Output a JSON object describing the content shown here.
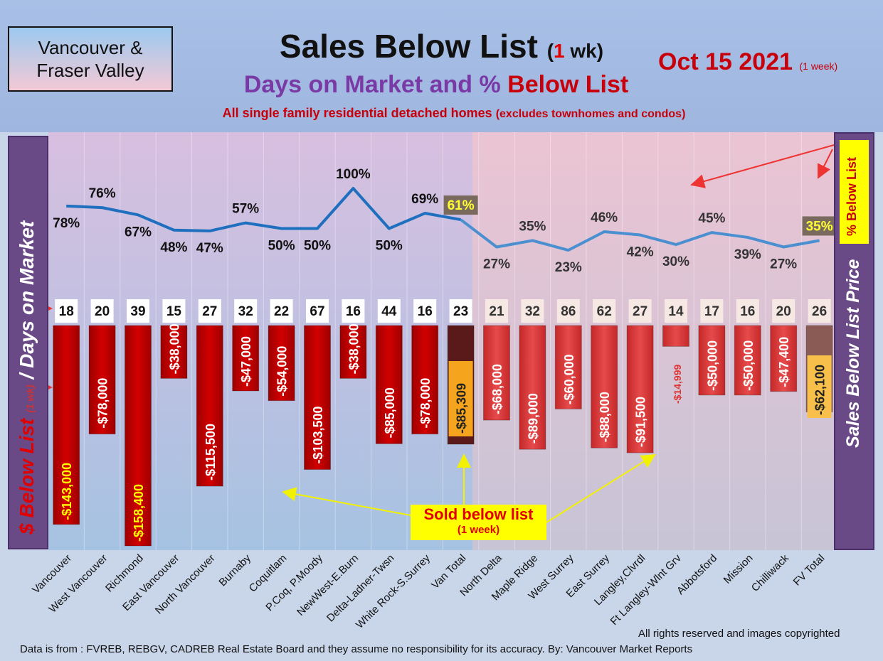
{
  "header": {
    "region": "Vancouver & Fraser Valley",
    "title_main": "Sales Below List",
    "title_open": "(",
    "title_num": "1",
    "title_close": " wk)",
    "subtitle_a": "Days on Market and % ",
    "subtitle_b": "Below List",
    "desc_a": "All single family residential detached homes ",
    "desc_b": "(excludes townhomes and condos)",
    "date": "Oct 15  2021",
    "date_note": "(1 week)"
  },
  "left_axis": {
    "part1": "$ Below List",
    "part2": "(1 wk)",
    "part3": "/ Days on Market"
  },
  "right_axis": {
    "label": "Sales Below List Price",
    "badge": "% Below List"
  },
  "callout": {
    "main": "Sold below list",
    "sub": "(1 week)"
  },
  "footer": {
    "rights": "All rights reserved and  images copyrighted",
    "source": "Data is from : FVREB, REBGV, CADREB Real Estate Board and they assume no responsibility for its accuracy. By: Vancouver Market Reports"
  },
  "colors": {
    "van_bar": "#cc0000",
    "fv_bar": "#dd3b3b",
    "van_line": "#1f6fbf",
    "fv_line": "#4a8fd0",
    "total_bar": "#5a1a1a",
    "callout_bg": "#ffff00"
  },
  "chart_data": {
    "type": "bar",
    "categories": [
      "Vancouver",
      "West Vancouver",
      "Richmond",
      "East Vancouver",
      "North Vancouver",
      "Burnaby",
      "Coquitlam",
      "P.Coq, P.Moody",
      "NewWest-E.Burn",
      "Delta-Ladner-Twsn",
      "White Rock-S.Surrey",
      "Van Total",
      "North Delta",
      "Maple Ridge",
      "West Surrey",
      "East Surrey",
      "Langley,Clvrdl",
      "Ft Langley-Wlnt Grv",
      "Abbotsford",
      "Mission",
      "Chilliwack",
      "FV Total"
    ],
    "series": [
      {
        "name": "$ Below List",
        "values": [
          -143000,
          -78000,
          -158400,
          -38000,
          -115500,
          -47000,
          -54000,
          -103500,
          -38000,
          -85000,
          -78000,
          -85309,
          -68000,
          -89000,
          -60000,
          -88000,
          -91500,
          -14999,
          -50000,
          -50000,
          -47400,
          -62100
        ]
      },
      {
        "name": "% Below List",
        "values": [
          78,
          76,
          67,
          48,
          47,
          57,
          50,
          50,
          100,
          50,
          69,
          61,
          27,
          35,
          23,
          46,
          42,
          30,
          45,
          39,
          27,
          35
        ]
      },
      {
        "name": "Days on Market",
        "values": [
          18,
          20,
          39,
          15,
          27,
          32,
          22,
          67,
          16,
          44,
          16,
          23,
          21,
          32,
          86,
          62,
          27,
          14,
          17,
          16,
          20,
          26
        ]
      }
    ],
    "bar_labels": [
      "-$143,000",
      "-$78,000",
      "-$158,400",
      "-$38,000",
      "-$115,500",
      "-$47,000",
      "-$54,000",
      "-$103,500",
      "-$38,000",
      "-$85,000",
      "-$78,000",
      "-$85,309",
      "-$68,000",
      "-$89,000",
      "-$60,000",
      "-$88,000",
      "-$91,500",
      "-$14,999",
      "-$50,000",
      "-$50,000",
      "-$47,400",
      "-$62,100"
    ],
    "pct_labels": [
      "78%",
      "76%",
      "67%",
      "48%",
      "47%",
      "57%",
      "50%",
      "50%",
      "100%",
      "50%",
      "69%",
      "61%",
      "27%",
      "35%",
      "23%",
      "46%",
      "42%",
      "30%",
      "45%",
      "39%",
      "27%",
      "35%"
    ],
    "groups": [
      "Vancouver",
      "Fraser Valley"
    ]
  }
}
